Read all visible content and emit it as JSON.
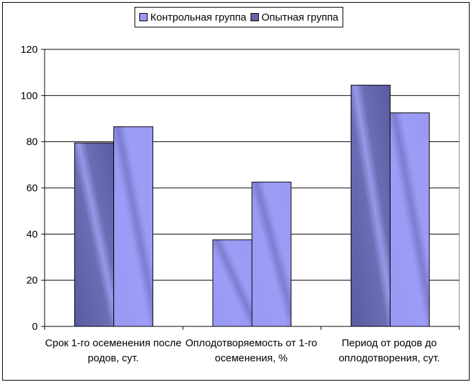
{
  "chart_data": {
    "type": "bar",
    "categories": [
      "Срок 1-го осеменения после родов, сут.",
      "Оплодотворяемость от 1-го осеменения, %",
      "Период от родов до оплодотворения, сут."
    ],
    "series": [
      {
        "name": "Контрольная группа",
        "values": [
          79.5,
          37.5,
          104.5
        ]
      },
      {
        "name": "Опытная группа",
        "values": [
          86.5,
          62.5,
          92.5
        ]
      }
    ],
    "ylim": [
      0,
      120
    ],
    "yticks": [
      "0",
      "20",
      "40",
      "60",
      "80",
      "100",
      "120"
    ],
    "grid": true,
    "legend_position": "top",
    "colors": {
      "dark_bar": "#6464AA",
      "light_bar": "#9999F5",
      "gradient_light": "#A0A0F8",
      "gradient_dark": "#5A5AA0"
    },
    "bar_styles": [
      [
        "dark",
        "light"
      ],
      [
        "light",
        "light"
      ],
      [
        "dark",
        "light"
      ]
    ]
  }
}
